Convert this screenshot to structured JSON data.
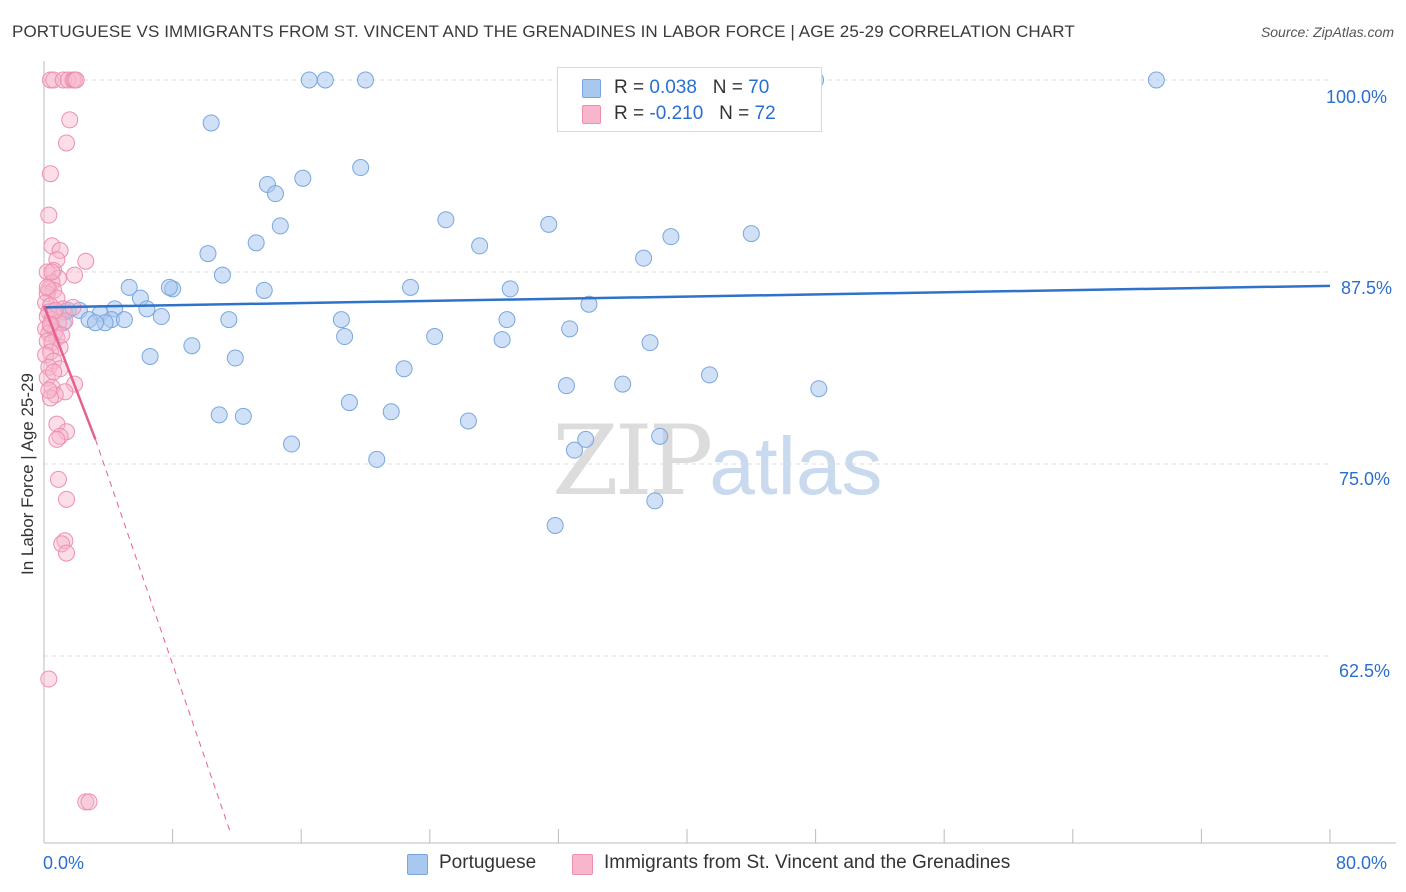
{
  "header": {
    "title": "PORTUGUESE VS IMMIGRANTS FROM ST. VINCENT AND THE GRENADINES IN LABOR FORCE | AGE 25-29 CORRELATION CHART",
    "source": "Source: ZipAtlas.com"
  },
  "watermark": {
    "zip": "ZIP",
    "atlas": "atlas"
  },
  "legend": {
    "rows": [
      {
        "r_label": "R =",
        "r_value": "0.038",
        "n_label": "N =",
        "n_value": "70"
      },
      {
        "r_label": "R =",
        "r_value": "-0.210",
        "n_label": "N =",
        "n_value": "72"
      }
    ]
  },
  "bottom_legend": {
    "items": [
      {
        "label": "Portuguese"
      },
      {
        "label": "Immigrants from St. Vincent and the Grenadines"
      }
    ]
  },
  "axes": {
    "ylabel": "In Labor Force | Age 25-29",
    "x_min_label": "0.0%",
    "x_max_label": "80.0%",
    "y_ticks": [
      "100.0%",
      "87.5%",
      "75.0%",
      "62.5%"
    ]
  },
  "colors": {
    "blue_fill": "#a9c8f0",
    "blue_stroke": "#7aa6de",
    "blue_line": "#2f72c9",
    "pink_fill": "#f7b6cb",
    "pink_stroke": "#ee8fae",
    "pink_line": "#e5608e",
    "grid": "#dddddd",
    "tick_text": "#2a6fcf"
  },
  "chart_data": {
    "type": "scatter",
    "xlim": [
      0,
      80
    ],
    "ylim": [
      51,
      101.5
    ],
    "y_gridlines": [
      100,
      87.5,
      75,
      62.5
    ],
    "grid": true,
    "legend_position": "top-center",
    "series": [
      {
        "name": "Portuguese",
        "color": "#a9c8f0",
        "trend": {
          "x": [
            0,
            80
          ],
          "y": [
            85.2,
            86.6
          ],
          "style": "solid"
        },
        "points": [
          [
            16.5,
            100.0
          ],
          [
            17.5,
            100.0
          ],
          [
            20.0,
            100.0
          ],
          [
            34.4,
            100.0
          ],
          [
            48.0,
            100.0
          ],
          [
            69.2,
            100.0
          ],
          [
            10.4,
            97.2
          ],
          [
            19.7,
            94.3
          ],
          [
            13.9,
            93.2
          ],
          [
            14.4,
            92.6
          ],
          [
            16.1,
            93.6
          ],
          [
            25.0,
            90.9
          ],
          [
            31.4,
            90.6
          ],
          [
            44.0,
            90.0
          ],
          [
            27.1,
            89.2
          ],
          [
            39.0,
            89.8
          ],
          [
            13.2,
            89.4
          ],
          [
            14.7,
            90.5
          ],
          [
            10.2,
            88.7
          ],
          [
            37.3,
            88.4
          ],
          [
            11.1,
            87.3
          ],
          [
            5.3,
            86.5
          ],
          [
            8.0,
            86.4
          ],
          [
            7.8,
            86.5
          ],
          [
            13.7,
            86.3
          ],
          [
            22.8,
            86.5
          ],
          [
            29.0,
            86.4
          ],
          [
            6.0,
            85.8
          ],
          [
            4.4,
            85.1
          ],
          [
            6.4,
            85.1
          ],
          [
            2.2,
            85.0
          ],
          [
            1.3,
            84.9
          ],
          [
            3.5,
            84.8
          ],
          [
            2.8,
            84.4
          ],
          [
            4.2,
            84.4
          ],
          [
            7.3,
            84.6
          ],
          [
            11.5,
            84.4
          ],
          [
            18.5,
            84.4
          ],
          [
            28.8,
            84.4
          ],
          [
            33.9,
            85.4
          ],
          [
            3.8,
            84.2
          ],
          [
            32.7,
            83.8
          ],
          [
            1.2,
            84.2
          ],
          [
            18.7,
            83.3
          ],
          [
            24.3,
            83.3
          ],
          [
            28.5,
            83.1
          ],
          [
            9.2,
            82.7
          ],
          [
            37.7,
            82.9
          ],
          [
            6.6,
            82.0
          ],
          [
            11.9,
            81.9
          ],
          [
            22.4,
            81.2
          ],
          [
            41.4,
            80.8
          ],
          [
            32.5,
            80.1
          ],
          [
            36.0,
            80.2
          ],
          [
            48.2,
            79.9
          ],
          [
            19.0,
            79.0
          ],
          [
            21.6,
            78.4
          ],
          [
            10.9,
            78.2
          ],
          [
            12.4,
            78.1
          ],
          [
            26.4,
            77.8
          ],
          [
            38.3,
            76.8
          ],
          [
            15.4,
            76.3
          ],
          [
            33.7,
            76.6
          ],
          [
            20.7,
            75.3
          ],
          [
            33.0,
            75.9
          ],
          [
            38.0,
            72.6
          ],
          [
            31.8,
            71.0
          ],
          [
            1.5,
            85.0
          ],
          [
            5.0,
            84.4
          ],
          [
            3.2,
            84.2
          ]
        ]
      },
      {
        "name": "Immigrants from St. Vincent and the Grenadines",
        "color": "#f7b6cb",
        "trend": {
          "x": [
            0,
            3.2
          ],
          "y": [
            85.3,
            76.6
          ],
          "x_dashed_end": 11.6,
          "y_dashed_end": 51.0,
          "style": "solid-then-dashed"
        },
        "points": [
          [
            0.4,
            100.0
          ],
          [
            0.6,
            100.0
          ],
          [
            1.2,
            100.0
          ],
          [
            1.5,
            100.0
          ],
          [
            1.8,
            100.0
          ],
          [
            1.9,
            100.0
          ],
          [
            2.0,
            100.0
          ],
          [
            1.6,
            97.4
          ],
          [
            1.4,
            95.9
          ],
          [
            0.4,
            93.9
          ],
          [
            0.3,
            91.2
          ],
          [
            0.5,
            89.2
          ],
          [
            1.0,
            88.9
          ],
          [
            0.8,
            88.3
          ],
          [
            2.6,
            88.2
          ],
          [
            0.6,
            87.6
          ],
          [
            0.2,
            87.5
          ],
          [
            0.9,
            87.1
          ],
          [
            1.9,
            87.3
          ],
          [
            0.5,
            86.8
          ],
          [
            0.3,
            86.4
          ],
          [
            0.6,
            86.3
          ],
          [
            0.2,
            86.1
          ],
          [
            0.8,
            85.8
          ],
          [
            0.1,
            85.5
          ],
          [
            0.4,
            85.3
          ],
          [
            1.2,
            85.1
          ],
          [
            1.8,
            85.2
          ],
          [
            0.3,
            84.9
          ],
          [
            0.6,
            84.9
          ],
          [
            0.2,
            84.6
          ],
          [
            0.5,
            84.4
          ],
          [
            0.9,
            84.2
          ],
          [
            1.3,
            84.3
          ],
          [
            0.4,
            84.0
          ],
          [
            0.1,
            83.8
          ],
          [
            0.7,
            83.6
          ],
          [
            0.3,
            83.5
          ],
          [
            0.8,
            83.2
          ],
          [
            0.2,
            83.0
          ],
          [
            0.5,
            82.9
          ],
          [
            1.0,
            82.6
          ],
          [
            0.4,
            82.3
          ],
          [
            0.1,
            82.1
          ],
          [
            0.6,
            81.7
          ],
          [
            0.3,
            81.3
          ],
          [
            1.0,
            81.2
          ],
          [
            0.2,
            80.6
          ],
          [
            1.9,
            80.2
          ],
          [
            0.5,
            80.0
          ],
          [
            1.3,
            79.7
          ],
          [
            0.7,
            79.5
          ],
          [
            0.4,
            79.3
          ],
          [
            0.8,
            77.6
          ],
          [
            1.4,
            77.1
          ],
          [
            1.0,
            76.8
          ],
          [
            0.8,
            76.6
          ],
          [
            0.9,
            74.0
          ],
          [
            1.4,
            72.7
          ],
          [
            1.3,
            70.0
          ],
          [
            1.1,
            69.8
          ],
          [
            1.4,
            69.2
          ],
          [
            0.3,
            61.0
          ],
          [
            2.6,
            53.0
          ],
          [
            2.8,
            53.0
          ],
          [
            0.5,
            87.5
          ],
          [
            0.2,
            86.5
          ],
          [
            0.7,
            85.0
          ],
          [
            0.4,
            84.1
          ],
          [
            1.1,
            83.4
          ],
          [
            0.6,
            81.0
          ],
          [
            0.3,
            79.8
          ]
        ]
      }
    ]
  }
}
